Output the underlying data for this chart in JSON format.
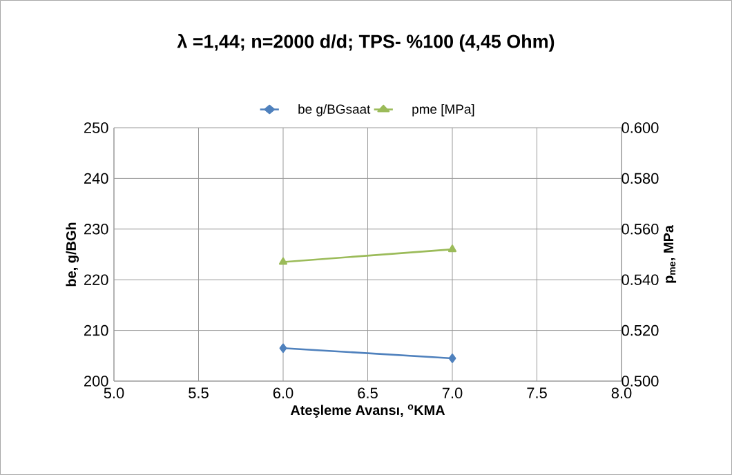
{
  "chart_data": {
    "type": "line",
    "title": "λ =1,44; n=2000 d/d; TPS- %100 (4,45 Ohm)",
    "xlabel": "Ateşleme Avansı, $^{o}$KMA",
    "ylabel": "be, g/BGh",
    "y2label": "p$_{me}$, MPa",
    "x": [
      6.0,
      7.0
    ],
    "series": [
      {
        "name": "be   g/BGsaat",
        "color": "#4f81bd",
        "marker": "diamond",
        "values": [
          206.5,
          204.5
        ]
      },
      {
        "name": "pme      [MPa]",
        "color": "#9bbb59",
        "marker": "triangle",
        "axis": "y2",
        "values": [
          0.547,
          0.552
        ]
      }
    ],
    "xlim": [
      5.0,
      8.0
    ],
    "xticks": [
      {
        "value": 5.0,
        "label": "5.0"
      },
      {
        "value": 5.5,
        "label": "5.5"
      },
      {
        "value": 6.0,
        "label": "6.0"
      },
      {
        "value": 6.5,
        "label": "6.5"
      },
      {
        "value": 7.0,
        "label": "7.0"
      },
      {
        "value": 7.5,
        "label": "7.5"
      },
      {
        "value": 8.0,
        "label": "8.0"
      }
    ],
    "ylim": [
      200,
      250
    ],
    "yticks": [
      200,
      210,
      220,
      230,
      240,
      250
    ],
    "y2lim": [
      0.5,
      0.6
    ],
    "y2ticks": [
      {
        "value": 0.5,
        "label": "0.500"
      },
      {
        "value": 0.52,
        "label": "0.520"
      },
      {
        "value": 0.54,
        "label": "0.540"
      },
      {
        "value": 0.56,
        "label": "0.560"
      },
      {
        "value": 0.58,
        "label": "0.580"
      },
      {
        "value": 0.6,
        "label": "0.600"
      }
    ],
    "grid": true,
    "legend": "top"
  }
}
